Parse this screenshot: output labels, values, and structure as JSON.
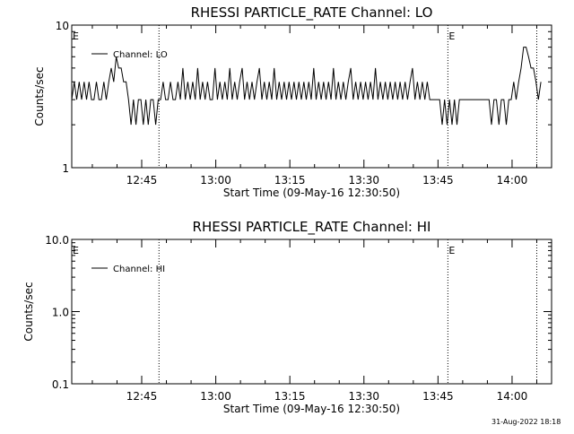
{
  "footer": {
    "timestamp": "31-Aug-2022 18:18"
  },
  "chart_data": [
    {
      "type": "line",
      "title": "RHESSI PARTICLE_RATE Channel: LO",
      "xlabel": "Start Time (09-May-16 12:30:50)",
      "ylabel": "Counts/sec",
      "y_scale": "log",
      "ylim": [
        1,
        10
      ],
      "yticks": [
        "10",
        "1"
      ],
      "xlim": [
        "12:30:50",
        "14:08:00"
      ],
      "xticks": [
        "12:45",
        "13:00",
        "13:15",
        "13:30",
        "13:45",
        "14:00"
      ],
      "grid": false,
      "legend": {
        "position": "top-left",
        "entries": [
          "Channel: LO"
        ]
      },
      "eclipse_marks": [
        {
          "time": "12:30:50",
          "label": "E"
        },
        {
          "time": "13:47:00",
          "label": "E"
        }
      ],
      "vertical_lines": [
        "12:48:30",
        "13:47:00",
        "14:05:00"
      ],
      "series": [
        {
          "name": "Channel: LO",
          "points": [
            [
              "12:30:50",
              3
            ],
            [
              "12:31:20",
              4
            ],
            [
              "12:31:50",
              3
            ],
            [
              "12:32:20",
              4
            ],
            [
              "12:32:50",
              3
            ],
            [
              "12:33:20",
              4
            ],
            [
              "12:33:50",
              3
            ],
            [
              "12:34:20",
              4
            ],
            [
              "12:34:50",
              3
            ],
            [
              "12:35:20",
              3
            ],
            [
              "12:35:50",
              4
            ],
            [
              "12:36:20",
              3
            ],
            [
              "12:36:50",
              3
            ],
            [
              "12:37:20",
              4
            ],
            [
              "12:37:50",
              3
            ],
            [
              "12:38:20",
              4
            ],
            [
              "12:38:50",
              5
            ],
            [
              "12:39:20",
              4
            ],
            [
              "12:39:50",
              6
            ],
            [
              "12:40:20",
              5
            ],
            [
              "12:40:50",
              5
            ],
            [
              "12:41:20",
              4
            ],
            [
              "12:41:50",
              4
            ],
            [
              "12:42:20",
              3
            ],
            [
              "12:42:50",
              2
            ],
            [
              "12:43:20",
              3
            ],
            [
              "12:43:50",
              2
            ],
            [
              "12:44:20",
              3
            ],
            [
              "12:44:50",
              3
            ],
            [
              "12:45:20",
              2
            ],
            [
              "12:45:50",
              3
            ],
            [
              "12:46:20",
              2
            ],
            [
              "12:46:50",
              3
            ],
            [
              "12:47:20",
              3
            ],
            [
              "12:47:50",
              2
            ],
            [
              "12:48:20",
              3
            ],
            [
              "12:48:50",
              3
            ],
            [
              "12:49:20",
              4
            ],
            [
              "12:49:50",
              3
            ],
            [
              "12:50:20",
              3
            ],
            [
              "12:50:50",
              4
            ],
            [
              "12:51:20",
              3
            ],
            [
              "12:51:50",
              3
            ],
            [
              "12:52:20",
              4
            ],
            [
              "12:52:50",
              3
            ],
            [
              "12:53:20",
              5
            ],
            [
              "12:53:50",
              3
            ],
            [
              "12:54:20",
              4
            ],
            [
              "12:54:50",
              3
            ],
            [
              "12:55:20",
              4
            ],
            [
              "12:55:50",
              3
            ],
            [
              "12:56:20",
              5
            ],
            [
              "12:56:50",
              3
            ],
            [
              "12:57:20",
              4
            ],
            [
              "12:57:50",
              3
            ],
            [
              "12:58:20",
              4
            ],
            [
              "12:58:50",
              3
            ],
            [
              "12:59:20",
              3
            ],
            [
              "12:59:50",
              5
            ],
            [
              "13:00:20",
              3
            ],
            [
              "13:00:50",
              4
            ],
            [
              "13:01:20",
              3
            ],
            [
              "13:01:50",
              4
            ],
            [
              "13:02:20",
              3
            ],
            [
              "13:02:50",
              5
            ],
            [
              "13:03:20",
              3
            ],
            [
              "13:03:50",
              4
            ],
            [
              "13:04:20",
              3
            ],
            [
              "13:04:50",
              4
            ],
            [
              "13:05:20",
              5
            ],
            [
              "13:05:50",
              3
            ],
            [
              "13:06:20",
              4
            ],
            [
              "13:06:50",
              3
            ],
            [
              "13:07:20",
              4
            ],
            [
              "13:07:50",
              3
            ],
            [
              "13:08:20",
              4
            ],
            [
              "13:08:50",
              5
            ],
            [
              "13:09:20",
              3
            ],
            [
              "13:09:50",
              4
            ],
            [
              "13:10:20",
              3
            ],
            [
              "13:10:50",
              4
            ],
            [
              "13:11:20",
              3
            ],
            [
              "13:11:50",
              5
            ],
            [
              "13:12:20",
              3
            ],
            [
              "13:12:50",
              4
            ],
            [
              "13:13:20",
              3
            ],
            [
              "13:13:50",
              4
            ],
            [
              "13:14:20",
              3
            ],
            [
              "13:14:50",
              4
            ],
            [
              "13:15:20",
              3
            ],
            [
              "13:15:50",
              4
            ],
            [
              "13:16:20",
              3
            ],
            [
              "13:16:50",
              4
            ],
            [
              "13:17:20",
              3
            ],
            [
              "13:17:50",
              4
            ],
            [
              "13:18:20",
              3
            ],
            [
              "13:18:50",
              4
            ],
            [
              "13:19:20",
              3
            ],
            [
              "13:19:50",
              5
            ],
            [
              "13:20:20",
              3
            ],
            [
              "13:20:50",
              4
            ],
            [
              "13:21:20",
              3
            ],
            [
              "13:21:50",
              4
            ],
            [
              "13:22:20",
              3
            ],
            [
              "13:22:50",
              4
            ],
            [
              "13:23:20",
              3
            ],
            [
              "13:23:50",
              5
            ],
            [
              "13:24:20",
              3
            ],
            [
              "13:24:50",
              4
            ],
            [
              "13:25:20",
              3
            ],
            [
              "13:25:50",
              4
            ],
            [
              "13:26:20",
              3
            ],
            [
              "13:26:50",
              4
            ],
            [
              "13:27:20",
              5
            ],
            [
              "13:27:50",
              3
            ],
            [
              "13:28:20",
              4
            ],
            [
              "13:28:50",
              3
            ],
            [
              "13:29:20",
              4
            ],
            [
              "13:29:50",
              3
            ],
            [
              "13:30:20",
              4
            ],
            [
              "13:30:50",
              3
            ],
            [
              "13:31:20",
              4
            ],
            [
              "13:31:50",
              3
            ],
            [
              "13:32:20",
              5
            ],
            [
              "13:32:50",
              3
            ],
            [
              "13:33:20",
              4
            ],
            [
              "13:33:50",
              3
            ],
            [
              "13:34:20",
              4
            ],
            [
              "13:34:50",
              3
            ],
            [
              "13:35:20",
              4
            ],
            [
              "13:35:50",
              3
            ],
            [
              "13:36:20",
              4
            ],
            [
              "13:36:50",
              3
            ],
            [
              "13:37:20",
              4
            ],
            [
              "13:37:50",
              3
            ],
            [
              "13:38:20",
              4
            ],
            [
              "13:38:50",
              3
            ],
            [
              "13:39:20",
              4
            ],
            [
              "13:39:50",
              5
            ],
            [
              "13:40:20",
              3
            ],
            [
              "13:40:50",
              4
            ],
            [
              "13:41:20",
              3
            ],
            [
              "13:41:50",
              4
            ],
            [
              "13:42:20",
              3
            ],
            [
              "13:42:50",
              4
            ],
            [
              "13:43:20",
              3
            ],
            [
              "13:43:50",
              3
            ],
            [
              "13:44:20",
              3
            ],
            [
              "13:44:50",
              3
            ],
            [
              "13:45:20",
              3
            ],
            [
              "13:45:50",
              2
            ],
            [
              "13:46:20",
              3
            ],
            [
              "13:46:50",
              2
            ],
            [
              "13:47:20",
              3
            ],
            [
              "13:47:50",
              2
            ],
            [
              "13:48:20",
              3
            ],
            [
              "13:48:50",
              2
            ],
            [
              "13:49:20",
              3
            ],
            [
              "13:49:50",
              3
            ],
            [
              "13:50:20",
              3
            ],
            [
              "13:50:50",
              3
            ],
            [
              "13:51:20",
              3
            ],
            [
              "13:51:50",
              3
            ],
            [
              "13:52:20",
              3
            ],
            [
              "13:52:50",
              3
            ],
            [
              "13:53:20",
              3
            ],
            [
              "13:53:50",
              3
            ],
            [
              "13:54:20",
              3
            ],
            [
              "13:54:50",
              3
            ],
            [
              "13:55:20",
              3
            ],
            [
              "13:55:50",
              2
            ],
            [
              "13:56:20",
              3
            ],
            [
              "13:56:50",
              3
            ],
            [
              "13:57:20",
              2
            ],
            [
              "13:57:50",
              3
            ],
            [
              "13:58:20",
              3
            ],
            [
              "13:58:50",
              2
            ],
            [
              "13:59:20",
              3
            ],
            [
              "13:59:50",
              3
            ],
            [
              "14:00:20",
              4
            ],
            [
              "14:00:50",
              3
            ],
            [
              "14:01:20",
              4
            ],
            [
              "14:01:50",
              5
            ],
            [
              "14:02:20",
              7
            ],
            [
              "14:02:50",
              7
            ],
            [
              "14:03:20",
              6
            ],
            [
              "14:03:50",
              5
            ],
            [
              "14:04:20",
              5
            ],
            [
              "14:04:50",
              4
            ],
            [
              "14:05:20",
              3
            ],
            [
              "14:05:50",
              4
            ]
          ]
        }
      ]
    },
    {
      "type": "line",
      "title": "RHESSI PARTICLE_RATE Channel: HI",
      "xlabel": "Start Time (09-May-16 12:30:50)",
      "ylabel": "Counts/sec",
      "y_scale": "log",
      "ylim": [
        0.1,
        10
      ],
      "yticks": [
        "10.0",
        "1.0",
        "0.1"
      ],
      "xlim": [
        "12:30:50",
        "14:08:00"
      ],
      "xticks": [
        "12:45",
        "13:00",
        "13:15",
        "13:30",
        "13:45",
        "14:00"
      ],
      "grid": false,
      "legend": {
        "position": "top-left",
        "entries": [
          "Channel: HI"
        ]
      },
      "eclipse_marks": [
        {
          "time": "12:30:50",
          "label": "E"
        },
        {
          "time": "13:47:00",
          "label": "E"
        }
      ],
      "vertical_lines": [
        "12:48:30",
        "13:47:00",
        "14:05:00"
      ],
      "series": [
        {
          "name": "Channel: HI",
          "points": []
        }
      ]
    }
  ]
}
